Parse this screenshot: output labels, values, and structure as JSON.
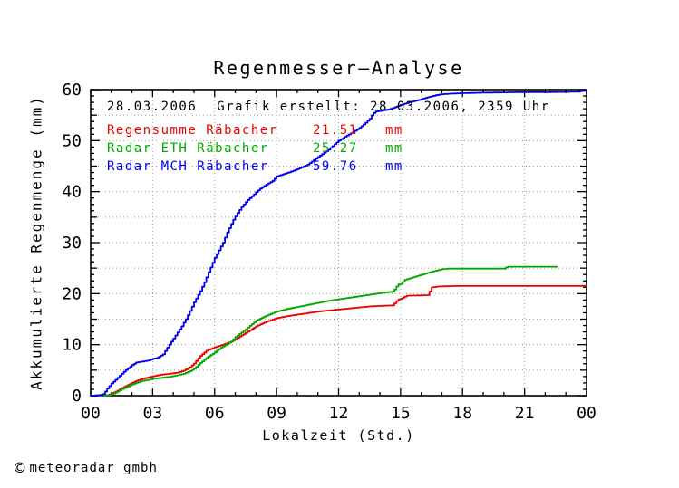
{
  "title": "Regenmesser—Analyse",
  "info_line": {
    "date": "28.03.2006",
    "created": "Grafik erstellt: 28.03.2006, 2359 Uhr"
  },
  "legend": {
    "rows": [
      {
        "label": "Regensumme Räbacher",
        "value": "21.51",
        "unit": "mm",
        "color": "#ee0000"
      },
      {
        "label": "Radar ETH Räbacher",
        "value": "25.27",
        "unit": "mm",
        "color": "#00aa00"
      },
      {
        "label": "Radar MCH Räbacher",
        "value": "59.76",
        "unit": "mm",
        "color": "#0000ee"
      }
    ]
  },
  "footer": {
    "copyright_symbol": "©",
    "company": "meteoradar gmbh"
  },
  "colors": {
    "axis": "#000000",
    "grid": "#999999",
    "background": "#ffffff",
    "rain_gauge": "#ee0000",
    "radar_eth": "#00aa00",
    "radar_mch": "#0000ee"
  },
  "chart_data": {
    "type": "line",
    "title": "Regenmesser—Analyse",
    "xlabel": "Lokalzeit (Std.)",
    "ylabel": "Akkumulierte Regenmenge (mm)",
    "xlim": [
      0,
      24
    ],
    "ylim": [
      0,
      60
    ],
    "grid": "dotted",
    "legend_position": "top-left-inside",
    "x_axis": {
      "minor_step_hours": 1,
      "major_step_hours": 3,
      "grid_step_hours": 3,
      "tick_labels": [
        {
          "h": 0,
          "label": "00"
        },
        {
          "h": 3,
          "label": "03"
        },
        {
          "h": 6,
          "label": "06"
        },
        {
          "h": 9,
          "label": "09"
        },
        {
          "h": 12,
          "label": "12"
        },
        {
          "h": 15,
          "label": "15"
        },
        {
          "h": 18,
          "label": "18"
        },
        {
          "h": 21,
          "label": "21"
        },
        {
          "h": 24,
          "label": "00"
        }
      ]
    },
    "y_axis": {
      "minor_step_mm": 1.25,
      "mid_step_mm": 5,
      "major_step_mm": 10,
      "grid_step_mm": 5,
      "tick_labels": [
        {
          "v": 0,
          "label": "0"
        },
        {
          "v": 10,
          "label": "10"
        },
        {
          "v": 20,
          "label": "20"
        },
        {
          "v": 30,
          "label": "30"
        },
        {
          "v": 40,
          "label": "40"
        },
        {
          "v": 50,
          "label": "50"
        },
        {
          "v": 60,
          "label": "60"
        }
      ]
    },
    "series": [
      {
        "name": "Regensumme Räbacher",
        "total_mm": 21.51,
        "color": "#ee0000",
        "points": [
          [
            0,
            0
          ],
          [
            0.8,
            0.1
          ],
          [
            1.0,
            0.4
          ],
          [
            1.3,
            1.0
          ],
          [
            1.5,
            1.5
          ],
          [
            1.75,
            2.0
          ],
          [
            2.0,
            2.5
          ],
          [
            2.2,
            2.9
          ],
          [
            2.5,
            3.3
          ],
          [
            2.8,
            3.6
          ],
          [
            3.0,
            3.8
          ],
          [
            3.4,
            4.1
          ],
          [
            3.8,
            4.3
          ],
          [
            4.2,
            4.5
          ],
          [
            4.5,
            4.9
          ],
          [
            4.8,
            5.6
          ],
          [
            5.0,
            6.3
          ],
          [
            5.3,
            7.8
          ],
          [
            5.6,
            8.8
          ],
          [
            6.0,
            9.5
          ],
          [
            6.4,
            10.0
          ],
          [
            6.8,
            10.6
          ],
          [
            7.0,
            11.1
          ],
          [
            7.5,
            12.3
          ],
          [
            8.0,
            13.6
          ],
          [
            8.5,
            14.5
          ],
          [
            9.0,
            15.2
          ],
          [
            9.5,
            15.6
          ],
          [
            10.0,
            15.9
          ],
          [
            10.5,
            16.2
          ],
          [
            11.0,
            16.5
          ],
          [
            11.5,
            16.7
          ],
          [
            12.0,
            16.9
          ],
          [
            12.5,
            17.1
          ],
          [
            13.0,
            17.3
          ],
          [
            13.5,
            17.5
          ],
          [
            14.0,
            17.6
          ],
          [
            14.6,
            17.7
          ],
          [
            14.75,
            18.3
          ],
          [
            14.85,
            18.8
          ],
          [
            15.0,
            19.0
          ],
          [
            15.15,
            19.3
          ],
          [
            15.3,
            19.6
          ],
          [
            15.8,
            19.65
          ],
          [
            16.35,
            19.7
          ],
          [
            16.45,
            21.2
          ],
          [
            16.8,
            21.4
          ],
          [
            17.2,
            21.45
          ],
          [
            17.7,
            21.5
          ],
          [
            23.6,
            21.5
          ],
          [
            23.7,
            21.51
          ],
          [
            24,
            21.51
          ]
        ]
      },
      {
        "name": "Radar ETH Räbacher",
        "total_mm": 25.27,
        "color": "#00aa00",
        "points": [
          [
            0,
            0
          ],
          [
            0.9,
            0.1
          ],
          [
            1.1,
            0.4
          ],
          [
            1.3,
            0.8
          ],
          [
            1.5,
            1.3
          ],
          [
            1.75,
            1.7
          ],
          [
            2.0,
            2.2
          ],
          [
            2.2,
            2.5
          ],
          [
            2.5,
            2.9
          ],
          [
            2.8,
            3.1
          ],
          [
            3.0,
            3.3
          ],
          [
            3.4,
            3.5
          ],
          [
            3.8,
            3.7
          ],
          [
            4.2,
            4.0
          ],
          [
            4.5,
            4.3
          ],
          [
            4.8,
            4.8
          ],
          [
            5.0,
            5.3
          ],
          [
            5.3,
            6.4
          ],
          [
            5.6,
            7.4
          ],
          [
            6.0,
            8.5
          ],
          [
            6.3,
            9.4
          ],
          [
            6.8,
            10.6
          ],
          [
            7.0,
            11.5
          ],
          [
            7.5,
            13.0
          ],
          [
            8.0,
            14.7
          ],
          [
            8.5,
            15.7
          ],
          [
            9.0,
            16.5
          ],
          [
            9.5,
            17.0
          ],
          [
            10.0,
            17.4
          ],
          [
            10.5,
            17.8
          ],
          [
            11.0,
            18.2
          ],
          [
            11.5,
            18.6
          ],
          [
            12.0,
            18.9
          ],
          [
            12.5,
            19.2
          ],
          [
            13.0,
            19.5
          ],
          [
            13.5,
            19.8
          ],
          [
            14.0,
            20.1
          ],
          [
            14.6,
            20.4
          ],
          [
            14.75,
            21.0
          ],
          [
            14.85,
            21.8
          ],
          [
            15.0,
            21.9
          ],
          [
            15.1,
            22.3
          ],
          [
            15.2,
            22.7
          ],
          [
            15.6,
            23.2
          ],
          [
            16.0,
            23.7
          ],
          [
            16.4,
            24.2
          ],
          [
            16.7,
            24.5
          ],
          [
            17.0,
            24.8
          ],
          [
            17.3,
            24.9
          ],
          [
            20.0,
            24.9
          ],
          [
            20.15,
            25.27
          ],
          [
            22.6,
            25.27
          ]
        ]
      },
      {
        "name": "Radar MCH Räbacher",
        "total_mm": 59.76,
        "color": "#0000ee",
        "points": [
          [
            0,
            0
          ],
          [
            0.4,
            0.1
          ],
          [
            0.6,
            0.3
          ],
          [
            0.7,
            0.8
          ],
          [
            0.8,
            1.4
          ],
          [
            0.9,
            1.9
          ],
          [
            1.0,
            2.4
          ],
          [
            1.15,
            2.9
          ],
          [
            1.3,
            3.5
          ],
          [
            1.5,
            4.3
          ],
          [
            1.75,
            5.2
          ],
          [
            2.0,
            6.0
          ],
          [
            2.2,
            6.5
          ],
          [
            2.5,
            6.7
          ],
          [
            2.8,
            6.9
          ],
          [
            3.0,
            7.2
          ],
          [
            3.2,
            7.4
          ],
          [
            3.5,
            8.1
          ],
          [
            3.7,
            9.4
          ],
          [
            3.95,
            10.9
          ],
          [
            4.2,
            12.4
          ],
          [
            4.4,
            13.6
          ],
          [
            4.6,
            15.0
          ],
          [
            4.8,
            16.6
          ],
          [
            5.0,
            18.3
          ],
          [
            5.3,
            20.5
          ],
          [
            5.5,
            22.2
          ],
          [
            5.7,
            24.2
          ],
          [
            6.0,
            27.0
          ],
          [
            6.2,
            28.5
          ],
          [
            6.4,
            30.0
          ],
          [
            6.6,
            32.0
          ],
          [
            6.9,
            34.5
          ],
          [
            7.1,
            35.8
          ],
          [
            7.3,
            37.0
          ],
          [
            7.55,
            38.2
          ],
          [
            7.8,
            39.1
          ],
          [
            8.0,
            39.9
          ],
          [
            8.2,
            40.6
          ],
          [
            8.5,
            41.4
          ],
          [
            8.8,
            42.1
          ],
          [
            9.0,
            43.0
          ],
          [
            9.6,
            43.8
          ],
          [
            10.0,
            44.4
          ],
          [
            10.5,
            45.3
          ],
          [
            11.0,
            46.8
          ],
          [
            11.5,
            48.2
          ],
          [
            12.0,
            50.0
          ],
          [
            12.4,
            51.0
          ],
          [
            12.7,
            51.7
          ],
          [
            13.0,
            52.5
          ],
          [
            13.3,
            53.5
          ],
          [
            13.5,
            54.3
          ],
          [
            13.65,
            55.3
          ],
          [
            13.8,
            55.7
          ],
          [
            14.1,
            55.9
          ],
          [
            14.4,
            56.1
          ],
          [
            14.7,
            56.5
          ],
          [
            15.0,
            57.0
          ],
          [
            15.4,
            57.5
          ],
          [
            15.9,
            58.0
          ],
          [
            16.3,
            58.5
          ],
          [
            16.7,
            58.9
          ],
          [
            17.0,
            59.1
          ],
          [
            17.4,
            59.2
          ],
          [
            18.0,
            59.3
          ],
          [
            19.0,
            59.4
          ],
          [
            20.0,
            59.45
          ],
          [
            21.0,
            59.5
          ],
          [
            22.0,
            59.5
          ],
          [
            23.0,
            59.55
          ],
          [
            23.6,
            59.6
          ],
          [
            23.75,
            59.76
          ],
          [
            24,
            59.76
          ]
        ]
      }
    ]
  }
}
